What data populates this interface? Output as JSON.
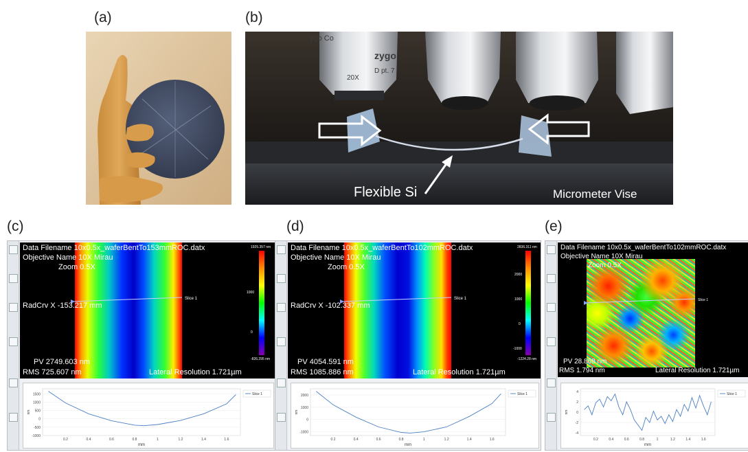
{
  "panel_labels": {
    "a": "(a)",
    "b": "(b)",
    "c": "(c)",
    "d": "(d)",
    "e": "(e)"
  },
  "photo_b": {
    "arrow_label": "Flexible Si",
    "vise_label": "Micrometer Vise",
    "lens_text_1": "ygo Co",
    "lens_text_2": "zygo",
    "lens_text_3": "20X",
    "lens_text_4": "D pt. 7"
  },
  "panel_c": {
    "filename": "Data Filename 10x0.5x_waferBentTo153mmROC.datx",
    "objective": "Objective Name 10X Mirau",
    "zoom": "Zoom 0.5X",
    "radcrv": "RadCrv X -153.217  mm",
    "pv": "PV 2749.603 nm",
    "rms": "RMS 725.607  nm",
    "lateral": "Lateral Resolution 1.721µm",
    "slice": "Slice 1",
    "scale_top": "1925.357 nm",
    "scale_bot": "-826.295 nm",
    "scale_ticks": [
      "1000",
      "0"
    ],
    "chart_data": {
      "type": "line",
      "x": [
        0.05,
        0.2,
        0.4,
        0.6,
        0.8,
        0.88,
        1.0,
        1.2,
        1.4,
        1.6,
        1.68
      ],
      "series": [
        {
          "name": "Slice 1",
          "values": [
            1650,
            950,
            300,
            -120,
            -380,
            -410,
            -340,
            -100,
            300,
            900,
            1450
          ]
        }
      ],
      "xticks": [
        "0.2",
        "0.4",
        "0.6",
        "0.8",
        "1",
        "1.2",
        "1.4",
        "1.6"
      ],
      "yticks": [
        "1500",
        "1000",
        "500",
        "0",
        "-500",
        "-1000"
      ],
      "xlabel": "mm",
      "ylabel": "nm",
      "xlim": [
        0,
        1.72
      ],
      "ylim": [
        -1000,
        1800
      ]
    }
  },
  "panel_d": {
    "filename": "Data Filename 10x0.5x_waferBentTo102mmROC.datx",
    "objective": "Objective Name 10X Mirau",
    "zoom": "Zoom 0.5X",
    "radcrv": "RadCrv X -102.337  mm",
    "pv": "PV 4054.591 nm",
    "rms": "RMS 1085.886 nm",
    "lateral": "Lateral Resolution 1.721µm",
    "slice": "Slice 1",
    "scale_top": "2836.311 nm",
    "scale_bot": "-1224.28 nm",
    "scale_ticks": [
      "2000",
      "1000",
      "0",
      "-1000"
    ],
    "chart_data": {
      "type": "line",
      "x": [
        0.05,
        0.2,
        0.4,
        0.6,
        0.8,
        0.88,
        1.0,
        1.2,
        1.4,
        1.6,
        1.68
      ],
      "series": [
        {
          "name": "Slice 1",
          "values": [
            2300,
            1200,
            200,
            -600,
            -1050,
            -1100,
            -1000,
            -600,
            250,
            1300,
            2100
          ]
        }
      ],
      "xticks": [
        "0.2",
        "0.4",
        "0.6",
        "0.8",
        "1",
        "1.2",
        "1.4",
        "1.6"
      ],
      "yticks": [
        "2000",
        "1000",
        "0",
        "-1000"
      ],
      "xlabel": "mm",
      "ylabel": "nm",
      "xlim": [
        0,
        1.72
      ],
      "ylim": [
        -1300,
        2500
      ]
    }
  },
  "panel_e": {
    "filename": "Data Filename 10x0.5x_waferBentTo102mmROC.datx",
    "objective": "Objective Name 10X Mirau",
    "zoom": "Zoom 0.5X",
    "pv": "PV 28.868 nm",
    "rms": "RMS 1.794  nm",
    "lateral": "Lateral Resolution 1.721µm",
    "slice": "Slice 1",
    "chart_data": {
      "type": "line",
      "x": [
        0.05,
        0.1,
        0.15,
        0.2,
        0.25,
        0.3,
        0.35,
        0.4,
        0.45,
        0.5,
        0.55,
        0.6,
        0.65,
        0.7,
        0.75,
        0.8,
        0.85,
        0.9,
        0.95,
        1.0,
        1.05,
        1.1,
        1.15,
        1.2,
        1.25,
        1.3,
        1.35,
        1.4,
        1.45,
        1.5,
        1.55,
        1.6,
        1.65,
        1.7
      ],
      "series": [
        {
          "name": "Slice 1",
          "values": [
            0.5,
            1.2,
            -0.5,
            1.8,
            2.5,
            1.0,
            3.0,
            2.2,
            3.5,
            1.0,
            -0.5,
            2.0,
            0.5,
            -1.5,
            -2.5,
            -3.5,
            -1.0,
            -2.0,
            0.2,
            -1.5,
            -0.8,
            -2.2,
            -0.5,
            -1.8,
            0.5,
            -0.8,
            1.5,
            0.2,
            2.8,
            0.8,
            3.2,
            1.2,
            -0.5,
            2.0
          ]
        }
      ],
      "xticks": [
        "0.2",
        "0.4",
        "0.6",
        "0.8",
        "1",
        "1.2",
        "1.4",
        "1.6"
      ],
      "yticks": [
        "4",
        "2",
        "0",
        "-2",
        "-4"
      ],
      "xlabel": "mm",
      "ylabel": "nm",
      "xlim": [
        0,
        1.75
      ],
      "ylim": [
        -4.5,
        4.5
      ]
    }
  }
}
